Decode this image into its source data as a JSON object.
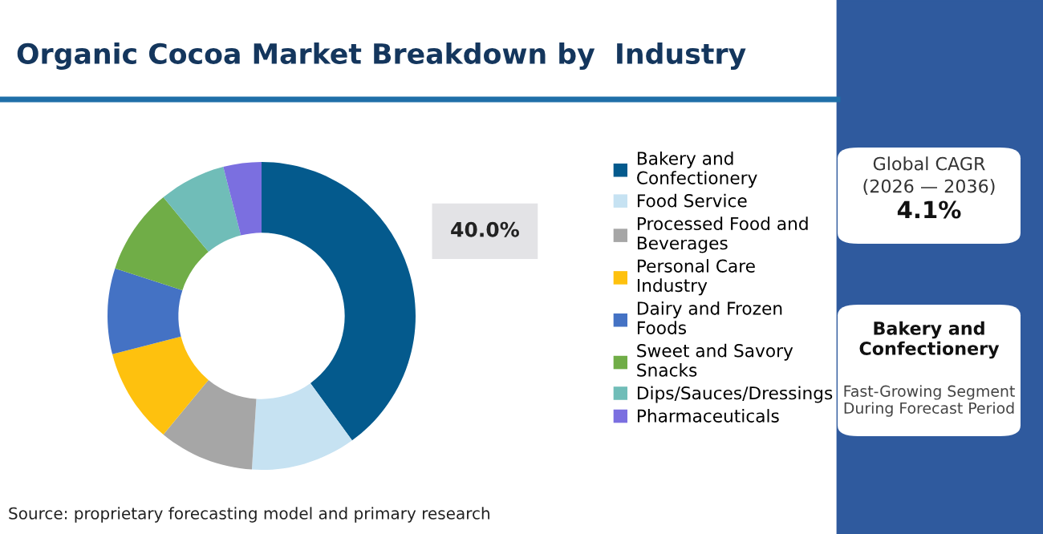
{
  "chart_data": {
    "type": "donut",
    "title": "Organic Cocoa Market Breakdown by  Industry",
    "categories": [
      "Bakery and Confectionery",
      "Food Service",
      "Processed Food and Beverages",
      "Personal Care Industry",
      "Dairy and Frozen Foods",
      "Sweet and Savory Snacks",
      "Dips/Sauces/Dressings",
      "Pharmaceuticals"
    ],
    "values": [
      40,
      11,
      10,
      10,
      9,
      9,
      7,
      4
    ],
    "colors": [
      "#045a8d",
      "#c6e2f2",
      "#a6a6a6",
      "#fec10e",
      "#4472c4",
      "#70ad47",
      "#70bdb8",
      "#7b6fe0"
    ],
    "value_labels": [
      "40.0%",
      null,
      null,
      null,
      null,
      null,
      null,
      null
    ],
    "legend": "right",
    "annotations": [
      "Global CAGR",
      "(2026 — 2036)",
      "4.1%",
      "Bakery and Confectionery",
      "Fast-Growing Segment During Forecast Period",
      "Source: proprietary forecasting model and primary research"
    ]
  }
}
